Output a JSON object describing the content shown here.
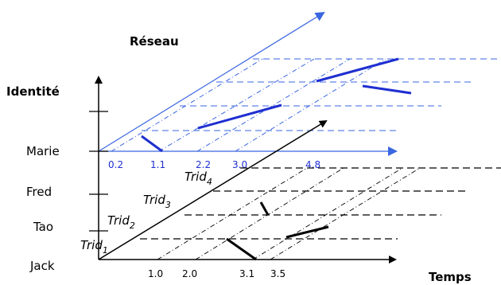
{
  "diagram": {
    "axes": {
      "network_label": "Réseau",
      "identity_label": "Identité",
      "time_label": "Temps"
    },
    "identities": [
      "Marie",
      "Fred",
      "Tao",
      "Jack"
    ],
    "trids": [
      {
        "base": "Trid",
        "sub": "4"
      },
      {
        "base": "Trid",
        "sub": "3"
      },
      {
        "base": "Trid",
        "sub": "2"
      },
      {
        "base": "Trid",
        "sub": "1"
      }
    ],
    "network_ticks": [
      "0.2",
      "1.1",
      "2.2",
      "3.0",
      "4.8"
    ],
    "time_ticks": [
      "1.0",
      "2.0",
      "3.1",
      "3.5"
    ],
    "colors": {
      "network": "#3a66e0",
      "segment": "#1f2fd0",
      "ink": "#000000"
    }
  }
}
